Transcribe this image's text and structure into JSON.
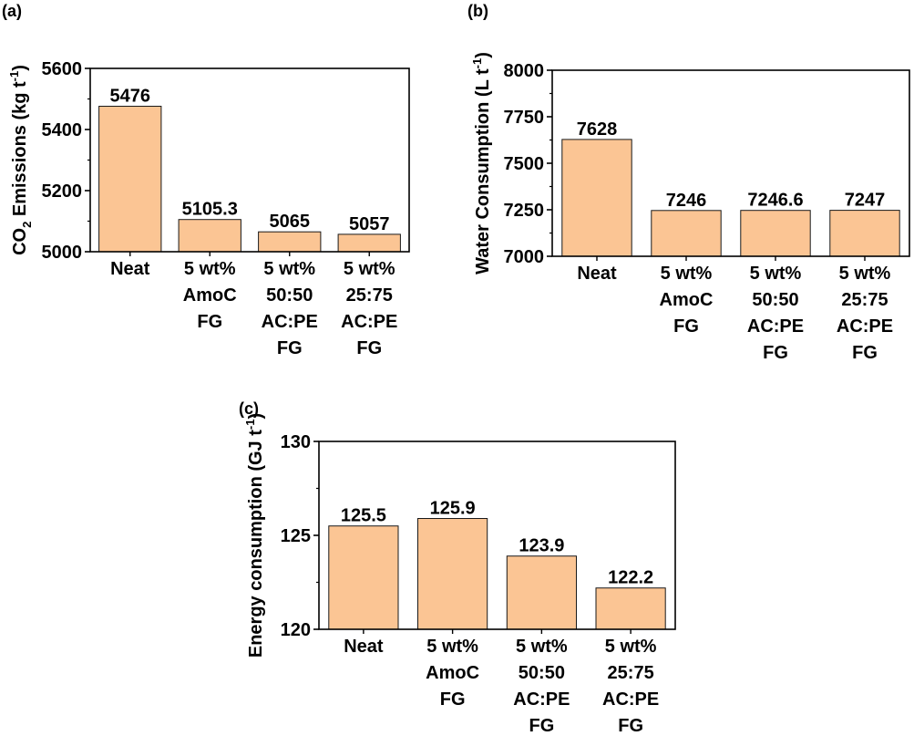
{
  "figure": {
    "bar_color": "#FBC594",
    "bar_stroke": "#1a1a1a",
    "axis_color": "#000000"
  },
  "chart_data": [
    {
      "id": "a",
      "panel_label": "(a)",
      "type": "bar",
      "ylabel": {
        "pre": "CO",
        "sub": "2",
        "mid": " Emissions (kg t",
        "sup": "-1",
        "post": ")"
      },
      "xlabel": "",
      "ylim": [
        5000,
        5600
      ],
      "yticks": [
        5000,
        5200,
        5400,
        5600
      ],
      "categories": [
        [
          "Neat"
        ],
        [
          "5 wt%",
          "AmoC",
          "FG"
        ],
        [
          "5 wt%",
          "50:50",
          "AC:PE",
          "FG"
        ],
        [
          "5 wt%",
          "25:75",
          "AC:PE",
          "FG"
        ]
      ],
      "values": [
        5476,
        5105.3,
        5065,
        5057
      ],
      "labels": [
        "5476",
        "5105.3",
        "5065",
        "5057"
      ]
    },
    {
      "id": "b",
      "panel_label": "(b)",
      "type": "bar",
      "ylabel": {
        "pre": "Water Consumption (L t",
        "sub": "",
        "mid": "",
        "sup": "-1",
        "post": ")"
      },
      "xlabel": "",
      "ylim": [
        7000,
        8000
      ],
      "yticks": [
        7000,
        7250,
        7500,
        7750,
        8000
      ],
      "categories": [
        [
          "Neat"
        ],
        [
          "5 wt%",
          "AmoC",
          "FG"
        ],
        [
          "5 wt%",
          "50:50",
          "AC:PE",
          "FG"
        ],
        [
          "5 wt%",
          "25:75",
          "AC:PE",
          "FG"
        ]
      ],
      "values": [
        7628,
        7246,
        7246.6,
        7247
      ],
      "labels": [
        "7628",
        "7246",
        "7246.6",
        "7247"
      ]
    },
    {
      "id": "c",
      "panel_label": "(c)",
      "type": "bar",
      "ylabel": {
        "pre": "Energy consumption (GJ t",
        "sub": "",
        "mid": "",
        "sup": "-1",
        "post": ")"
      },
      "xlabel": "",
      "ylim": [
        120,
        130
      ],
      "yticks": [
        120,
        125,
        130
      ],
      "categories": [
        [
          "Neat"
        ],
        [
          "5 wt%",
          "AmoC",
          "FG"
        ],
        [
          "5 wt%",
          "50:50",
          "AC:PE",
          "FG"
        ],
        [
          "5 wt%",
          "25:75",
          "AC:PE",
          "FG"
        ]
      ],
      "values": [
        125.5,
        125.9,
        123.9,
        122.2
      ],
      "labels": [
        "125.5",
        "125.9",
        "123.9",
        "122.2"
      ]
    }
  ]
}
